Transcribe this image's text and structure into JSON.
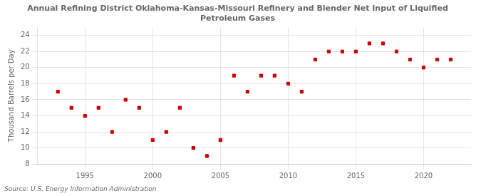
{
  "chart_data": {
    "type": "scatter",
    "title": "Annual Refining District Oklahoma-Kansas-Missouri Refinery and Blender Net Input of Liquified\nPetroleum Gases",
    "y_label": "Thousand Barrels per Day",
    "annotations": [
      "Source: U.S. Energy Information Administration"
    ],
    "x": [
      1993,
      1994,
      1995,
      1996,
      1997,
      1998,
      1999,
      2000,
      2001,
      2002,
      2003,
      2004,
      2005,
      2006,
      2007,
      2008,
      2009,
      2010,
      2011,
      2012,
      2013,
      2014,
      2015,
      2016,
      2017,
      2018,
      2019,
      2020,
      2021,
      2022
    ],
    "values": [
      17,
      15,
      14,
      15,
      12,
      16,
      15,
      11,
      12,
      15,
      10,
      9,
      11,
      19,
      17,
      19,
      19,
      18,
      17,
      21,
      22,
      22,
      22,
      23,
      23,
      22,
      21,
      20,
      21,
      21
    ],
    "color": "#cc0000",
    "marker": "square",
    "xlim": [
      1991.5,
      2023.5
    ],
    "xticks": [
      1995,
      2000,
      2005,
      2010,
      2015,
      2020
    ],
    "ylim": [
      8,
      25
    ],
    "yticks": [
      8,
      10,
      12,
      14,
      16,
      18,
      20,
      22,
      24
    ],
    "grid": true
  }
}
